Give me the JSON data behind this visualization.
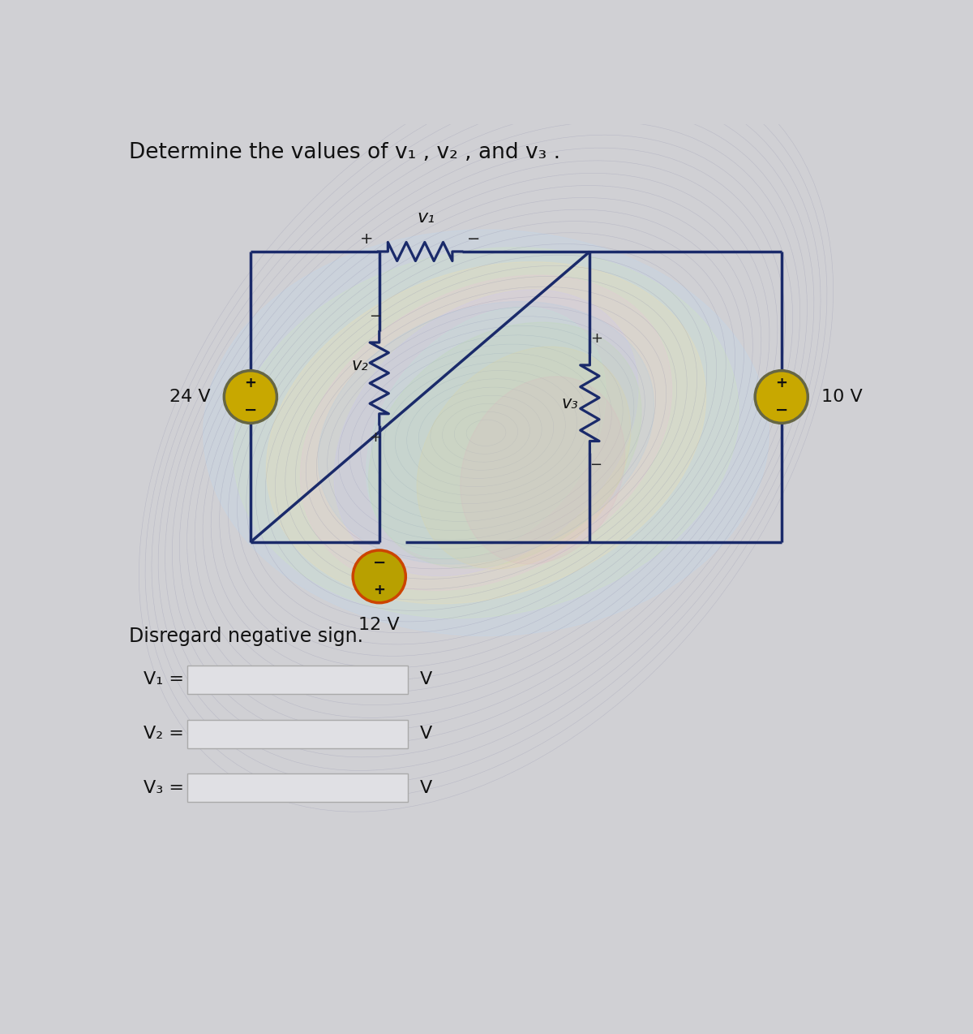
{
  "title": "Determine the values of v₁ , v₂ , and v₃ .",
  "bg_color_top": "#d0d0d4",
  "bg_color_bottom": "#c8c8cc",
  "source_24V": "24 V",
  "source_12V": "12 V",
  "source_10V": "10 V",
  "label_v1": "v₁",
  "label_v2": "v₂",
  "label_v3": "v₃",
  "note": "Disregard negative sign.",
  "input_labels": [
    "V₁ =",
    "V₂ =",
    "V₃ ="
  ],
  "unit": "V",
  "wire_color": "#1a2a6a",
  "resistor_color": "#1a2a6a",
  "source_fill_24": "#c8a800",
  "source_fill_12": "#b8a000",
  "source_fill_10": "#c8a800",
  "source_edge_12": "#cc4400",
  "font_size_title": 19,
  "font_size_labels": 15,
  "font_size_input": 16,
  "font_size_source": 16,
  "input_box_color": "#e0e0e4",
  "input_box_edge": "#aaaaaa",
  "swirl_colors": [
    "#c0d8f0",
    "#d0e8c0",
    "#f0e0b0",
    "#e8c8d8",
    "#d0c8f0",
    "#c8e8d8"
  ]
}
